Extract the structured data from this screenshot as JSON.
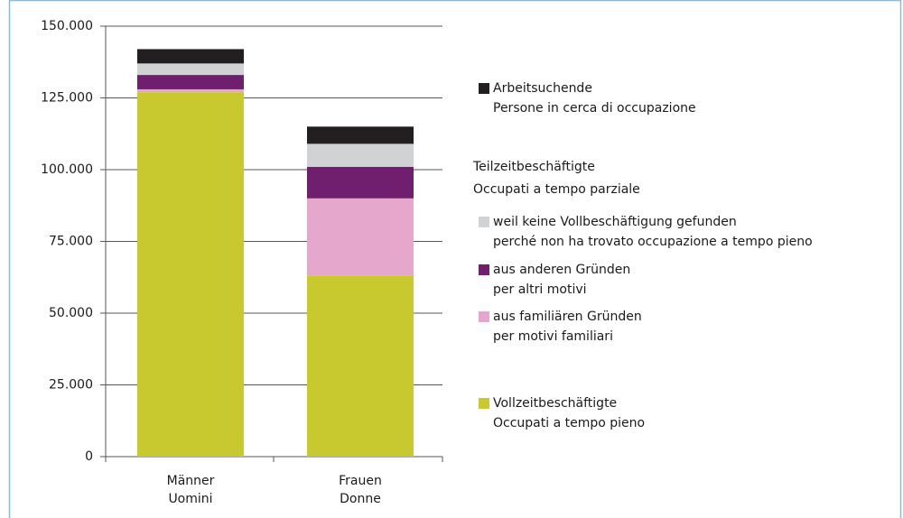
{
  "chart_data": {
    "type": "stacked-bar",
    "categories": [
      [
        "Männer",
        "Uomini"
      ],
      [
        "Frauen",
        "Donne"
      ]
    ],
    "series": [
      {
        "name": [
          "Vollzeitbeschäftigte",
          "Occupati a tempo pieno"
        ],
        "color": "#c8c92e",
        "values": [
          127000,
          63000
        ]
      },
      {
        "name": [
          "aus familiären Gründen",
          "per motivi familiari"
        ],
        "color": "#e5a8cc",
        "values": [
          1000,
          27000
        ]
      },
      {
        "name": [
          "aus anderen Gründen",
          "per altri motivi"
        ],
        "color": "#6f1f6e",
        "values": [
          5000,
          11000
        ]
      },
      {
        "name": [
          "weil keine Vollbeschäftigung gefunden",
          "perché non ha trovato occupazione a tempo pieno"
        ],
        "color": "#d1d2d4",
        "values": [
          4000,
          8000
        ]
      },
      {
        "name": [
          "Arbeitsuchende",
          "Persone in cerca di occupazione"
        ],
        "color": "#231f20",
        "values": [
          5000,
          6000
        ]
      }
    ],
    "legend_group_title": [
      "Teilzeitbeschäftigte",
      "Occupati a tempo parziale"
    ],
    "ylim": [
      0,
      150000
    ],
    "yticks": [
      0,
      {
        "value": 25000,
        "label": "25.000"
      },
      {
        "value": 50000,
        "label": "50.000"
      },
      {
        "value": 75000,
        "label": "75.000"
      },
      {
        "value": 100000,
        "label": "100.000"
      },
      {
        "value": 125000,
        "label": "125.000"
      },
      {
        "value": 150000,
        "label": "150.000"
      }
    ],
    "grid": true
  }
}
